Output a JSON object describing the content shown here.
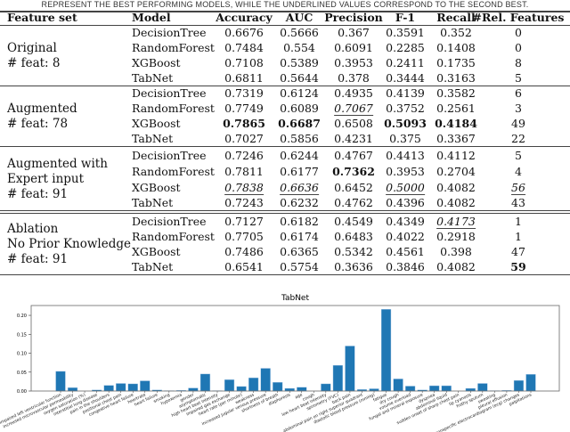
{
  "caption": "REPRESENT THE BEST PERFORMING MODELS, WHILE THE UNDERLINED VALUES CORRESPOND TO THE SECOND BEST.",
  "table": {
    "columns": [
      "Feature set",
      "Model",
      "Accuracy",
      "AUC",
      "Precision",
      "F-1",
      "Recall",
      "#Rel. Features"
    ],
    "groups": [
      {
        "label": [
          "Original",
          "# feat: 8"
        ],
        "rows": [
          {
            "model": "DecisionTree",
            "values": [
              "0.6676",
              "0.5666",
              "0.367",
              "0.3591",
              "0.352",
              "0"
            ],
            "bold": [],
            "underlined": []
          },
          {
            "model": "RandomForest",
            "values": [
              "0.7484",
              "0.554",
              "0.6091",
              "0.2285",
              "0.1408",
              "0"
            ],
            "bold": [],
            "underlined": []
          },
          {
            "model": "XGBoost",
            "values": [
              "0.7108",
              "0.5389",
              "0.3953",
              "0.2411",
              "0.1735",
              "8"
            ],
            "bold": [],
            "underlined": []
          },
          {
            "model": "TabNet",
            "values": [
              "0.6811",
              "0.5644",
              "0.378",
              "0.3444",
              "0.3163",
              "5"
            ],
            "bold": [],
            "underlined": []
          }
        ]
      },
      {
        "label": [
          "Augmented",
          "# feat: 78"
        ],
        "rows": [
          {
            "model": "DecisionTree",
            "values": [
              "0.7319",
              "0.6124",
              "0.4935",
              "0.4139",
              "0.3582",
              "6"
            ],
            "bold": [],
            "underlined": []
          },
          {
            "model": "RandomForest",
            "values": [
              "0.7749",
              "0.6089",
              "0.7067",
              "0.3752",
              "0.2561",
              "3"
            ],
            "bold": [],
            "underlined": [
              2
            ]
          },
          {
            "model": "XGBoost",
            "values": [
              "0.7865",
              "0.6687",
              "0.6508",
              "0.5093",
              "0.4184",
              "49"
            ],
            "bold": [
              0,
              1,
              3,
              4
            ],
            "underlined": []
          },
          {
            "model": "TabNet",
            "values": [
              "0.7027",
              "0.5856",
              "0.4231",
              "0.375",
              "0.3367",
              "22"
            ],
            "bold": [],
            "underlined": []
          }
        ]
      },
      {
        "label": [
          "Augmented with",
          "Expert input",
          "# feat: 91"
        ],
        "rows": [
          {
            "model": "DecisionTree",
            "values": [
              "0.7246",
              "0.6244",
              "0.4767",
              "0.4413",
              "0.4112",
              "5"
            ],
            "bold": [],
            "underlined": []
          },
          {
            "model": "RandomForest",
            "values": [
              "0.7811",
              "0.6177",
              "0.7362",
              "0.3953",
              "0.2704",
              "4"
            ],
            "bold": [
              2
            ],
            "underlined": []
          },
          {
            "model": "XGBoost",
            "values": [
              "0.7838",
              "0.6636",
              "0.6452",
              "0.5000",
              "0.4082",
              "56"
            ],
            "bold": [],
            "underlined": [
              0,
              1,
              3,
              5
            ]
          },
          {
            "model": "TabNet",
            "values": [
              "0.7243",
              "0.6232",
              "0.4762",
              "0.4396",
              "0.4082",
              "43"
            ],
            "bold": [],
            "underlined": []
          }
        ]
      },
      {
        "label": [
          "Ablation",
          "No Prior Knowledge",
          "# feat: 91"
        ],
        "rows": [
          {
            "model": "DecisionTree",
            "values": [
              "0.7127",
              "0.6182",
              "0.4549",
              "0.4349",
              "0.4173",
              "1"
            ],
            "bold": [],
            "underlined": [
              4
            ]
          },
          {
            "model": "RandomForest",
            "values": [
              "0.7705",
              "0.6174",
              "0.6483",
              "0.4022",
              "0.2918",
              "1"
            ],
            "bold": [],
            "underlined": []
          },
          {
            "model": "XGBoost",
            "values": [
              "0.7486",
              "0.6365",
              "0.5342",
              "0.4561",
              "0.398",
              "47"
            ],
            "bold": [],
            "underlined": []
          },
          {
            "model": "TabNet",
            "values": [
              "0.6541",
              "0.5754",
              "0.3636",
              "0.3846",
              "0.4082",
              "59"
            ],
            "bold": [
              5
            ],
            "underlined": []
          }
        ]
      }
    ]
  },
  "chart_data": {
    "type": "bar",
    "title": "TabNet",
    "xlabel": "",
    "ylabel": "",
    "ylim": [
      0,
      0.226
    ],
    "yticks": [
      "0.00",
      "0.05",
      "0.10",
      "0.15",
      "0.20"
    ],
    "grid": false,
    "bar_color": "#1f77b4",
    "categories": [
      "impaired left ventricular function",
      "increased microvascular permeability",
      "oxygen saturation (%)",
      "interstitial lung disease",
      "pain in the shoulders",
      "positional chest pain",
      "congestive heart failure",
      "heartrate",
      "heart failure",
      "smoking",
      "hypoxemia",
      "gender",
      "asymptomatic",
      "high heart beat intensity",
      "impaired gas exchange",
      "heart rate (per minute)",
      "weakness",
      "increased jugular venous pressure",
      "shortness of breath",
      "diaphoresis",
      "age",
      "cough",
      "low heart beat intensity",
      "spirometry (FVC)",
      "back pain",
      "abdominal pain on right superior quadrant",
      "diastolic blood pressure (mmHg)",
      "fatigue",
      "dry cough",
      "volume overload",
      "fungal and mineral exposure",
      "dyspnea",
      "abdominal liquid",
      "sudden onset of sharp chest pain",
      "lip cyanosis",
      "frothy sputum",
      "sweating",
      "pleural effusion",
      "nonspecific electrocardiogram (ecg) changes",
      "palpitations"
    ],
    "values": [
      0.052,
      0.009,
      0.0,
      0.003,
      0.015,
      0.02,
      0.019,
      0.027,
      0.003,
      0.001,
      0.002,
      0.008,
      0.045,
      0.001,
      0.03,
      0.012,
      0.035,
      0.06,
      0.023,
      0.007,
      0.01,
      0.0,
      0.019,
      0.068,
      0.119,
      0.004,
      0.006,
      0.216,
      0.032,
      0.013,
      0.003,
      0.014,
      0.014,
      0.0,
      0.007,
      0.02,
      0.001,
      0.002,
      0.028,
      0.044
    ]
  }
}
